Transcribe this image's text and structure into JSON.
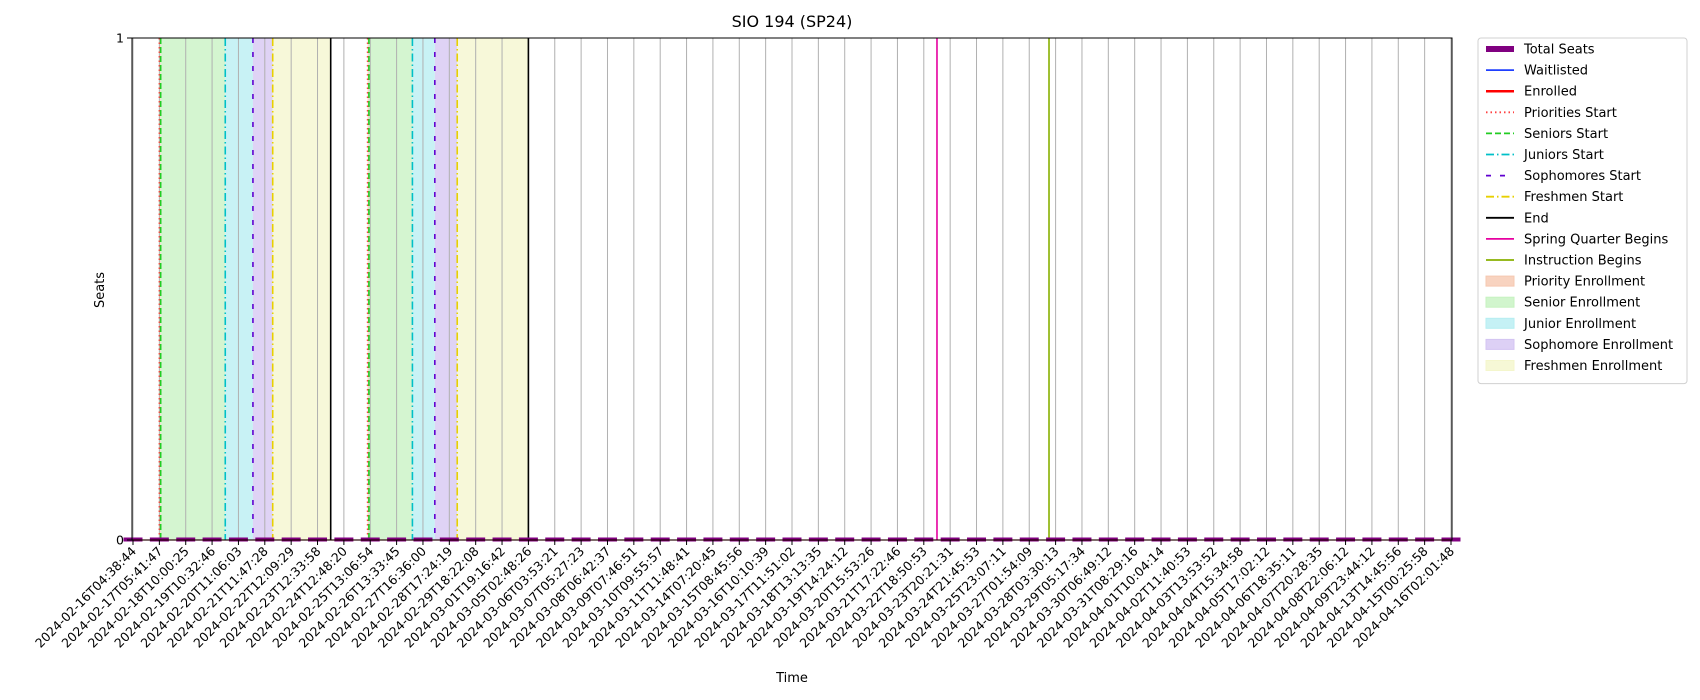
{
  "chart_data": {
    "type": "line",
    "title": "SIO 194 (SP24)",
    "xlabel": "Time",
    "ylabel": "Seats",
    "ylim": [
      0,
      1
    ],
    "y_ticks": [
      "0",
      "1"
    ],
    "x_tick_labels": [
      "2024-02-16T04:38:44",
      "2024-02-17T05:41:47",
      "2024-02-18T10:00:25",
      "2024-02-19T10:32:46",
      "2024-02-20T11:06:03",
      "2024-02-21T11:47:28",
      "2024-02-22T12:09:29",
      "2024-02-23T12:33:58",
      "2024-02-24T12:48:20",
      "2024-02-25T13:06:54",
      "2024-02-26T13:33:45",
      "2024-02-27T16:36:00",
      "2024-02-28T17:24:19",
      "2024-02-29T18:22:08",
      "2024-03-01T19:16:42",
      "2024-03-05T02:48:26",
      "2024-03-06T03:53:21",
      "2024-03-07T05:27:23",
      "2024-03-08T06:42:37",
      "2024-03-09T07:46:51",
      "2024-03-10T09:55:57",
      "2024-03-11T11:48:41",
      "2024-03-14T07:20:45",
      "2024-03-15T08:45:56",
      "2024-03-16T10:10:39",
      "2024-03-17T11:51:02",
      "2024-03-18T13:13:35",
      "2024-03-19T14:24:12",
      "2024-03-20T15:53:26",
      "2024-03-21T17:22:46",
      "2024-03-22T18:50:53",
      "2024-03-23T20:21:31",
      "2024-03-24T21:45:53",
      "2024-03-25T23:07:11",
      "2024-03-27T01:54:09",
      "2024-03-28T03:30:13",
      "2024-03-29T05:17:34",
      "2024-03-30T06:49:12",
      "2024-03-31T08:29:16",
      "2024-04-01T10:04:14",
      "2024-04-02T11:40:53",
      "2024-04-03T13:53:52",
      "2024-04-04T15:34:58",
      "2024-04-05T17:02:12",
      "2024-04-06T18:35:11",
      "2024-04-07T20:28:35",
      "2024-04-08T22:06:12",
      "2024-04-09T23:44:12",
      "2024-04-13T14:45:56",
      "2024-04-15T00:25:58",
      "2024-04-16T02:01:48"
    ],
    "series": [
      {
        "name": "Total Seats",
        "color": "#800080",
        "style": "bar",
        "values": [
          0,
          0,
          0,
          0,
          0,
          0,
          0,
          0,
          0,
          0,
          0,
          0,
          0,
          0,
          0,
          0,
          0,
          0,
          0,
          0,
          0,
          0,
          0,
          0,
          0,
          0,
          0,
          0,
          0,
          0,
          0,
          0,
          0,
          0,
          0,
          0,
          0,
          0,
          0,
          0,
          0,
          0,
          0,
          0,
          0,
          0,
          0,
          0,
          0,
          0,
          0
        ]
      },
      {
        "name": "Waitlisted",
        "color": "#1f3fff",
        "style": "solid",
        "values": [
          0,
          0,
          0,
          0,
          0,
          0,
          0,
          0,
          0,
          0,
          0,
          0,
          0,
          0,
          0,
          0,
          0,
          0,
          0,
          0,
          0,
          0,
          0,
          0,
          0,
          0,
          0,
          0,
          0,
          0,
          0,
          0,
          0,
          0,
          0,
          0,
          0,
          0,
          0,
          0,
          0,
          0,
          0,
          0,
          0,
          0,
          0,
          0,
          0,
          0,
          0
        ]
      },
      {
        "name": "Enrolled",
        "color": "#ff0000",
        "style": "solid-thick",
        "values": [
          0,
          0,
          0,
          0,
          0,
          0,
          0,
          0,
          0,
          0,
          0,
          0,
          0,
          0,
          0,
          0,
          0,
          0,
          0,
          0,
          0,
          0,
          0,
          0,
          0,
          0,
          0,
          0,
          0,
          0,
          0,
          0,
          0,
          0,
          0,
          0,
          0,
          0,
          0,
          0,
          0,
          0,
          0,
          0,
          0,
          0,
          0,
          0,
          0,
          0,
          0
        ]
      }
    ],
    "vertical_markers": [
      {
        "name": "Priorities Start",
        "color": "#ff4040",
        "style": "dotted",
        "x": [
          1.0,
          8.9
        ]
      },
      {
        "name": "Seniors Start",
        "color": "#22cc22",
        "style": "dashed",
        "x": [
          1.05,
          8.95
        ]
      },
      {
        "name": "Juniors Start",
        "color": "#00c0c8",
        "style": "dashdot",
        "x": [
          3.5,
          10.6
        ]
      },
      {
        "name": "Sophomores Start",
        "color": "#6000d0",
        "style": "loosedash",
        "x": [
          4.55,
          11.45
        ]
      },
      {
        "name": "Freshmen Start",
        "color": "#e8d000",
        "style": "dashdot",
        "x": [
          5.3,
          12.3
        ]
      },
      {
        "name": "End",
        "color": "#000000",
        "style": "solid",
        "x": [
          7.5,
          15.0
        ]
      },
      {
        "name": "Spring Quarter Begins",
        "color": "#e600a0",
        "style": "solid",
        "x": [
          30.5
        ]
      },
      {
        "name": "Instruction Begins",
        "color": "#88b000",
        "style": "solid",
        "x": [
          34.75
        ]
      }
    ],
    "enrollment_bands": [
      {
        "name": "Priority Enrollment",
        "color": "#f6c8b0",
        "ranges": [
          [
            1.0,
            1.05
          ],
          [
            8.9,
            8.95
          ]
        ]
      },
      {
        "name": "Senior Enrollment",
        "color": "#c6f2c0",
        "ranges": [
          [
            1.05,
            3.5
          ],
          [
            8.95,
            10.6
          ]
        ]
      },
      {
        "name": "Junior Enrollment",
        "color": "#b6eef2",
        "ranges": [
          [
            3.5,
            4.55
          ],
          [
            10.6,
            11.45
          ]
        ]
      },
      {
        "name": "Sophomore Enrollment",
        "color": "#d4c4f2",
        "ranges": [
          [
            4.55,
            5.3
          ],
          [
            11.45,
            12.3
          ]
        ]
      },
      {
        "name": "Freshmen Enrollment",
        "color": "#f4f6cc",
        "ranges": [
          [
            5.3,
            7.5
          ],
          [
            12.3,
            15.0
          ]
        ]
      }
    ],
    "legend": {
      "placement": "outside-right-top",
      "entries": [
        {
          "label": "Total Seats",
          "color": "#800080",
          "style": "thick"
        },
        {
          "label": "Waitlisted",
          "color": "#1f3fff",
          "style": "solid"
        },
        {
          "label": "Enrolled",
          "color": "#ff0000",
          "style": "solid-thick"
        },
        {
          "label": "Priorities Start",
          "color": "#ff4040",
          "style": "dotted"
        },
        {
          "label": "Seniors Start",
          "color": "#22cc22",
          "style": "dashed"
        },
        {
          "label": "Juniors Start",
          "color": "#00c0c8",
          "style": "dashdot"
        },
        {
          "label": "Sophomores Start",
          "color": "#6000d0",
          "style": "loosedash"
        },
        {
          "label": "Freshmen Start",
          "color": "#e8d000",
          "style": "dashdot"
        },
        {
          "label": "End",
          "color": "#000000",
          "style": "solid"
        },
        {
          "label": "Spring Quarter Begins",
          "color": "#e600a0",
          "style": "solid"
        },
        {
          "label": "Instruction Begins",
          "color": "#88b000",
          "style": "solid"
        },
        {
          "label": "Priority Enrollment",
          "color": "#f6c8b0",
          "style": "patch"
        },
        {
          "label": "Senior Enrollment",
          "color": "#c6f2c0",
          "style": "patch"
        },
        {
          "label": "Junior Enrollment",
          "color": "#b6eef2",
          "style": "patch"
        },
        {
          "label": "Sophomore Enrollment",
          "color": "#d4c4f2",
          "style": "patch"
        },
        {
          "label": "Freshmen Enrollment",
          "color": "#f4f6cc",
          "style": "patch"
        }
      ]
    },
    "grid": "vertical"
  }
}
